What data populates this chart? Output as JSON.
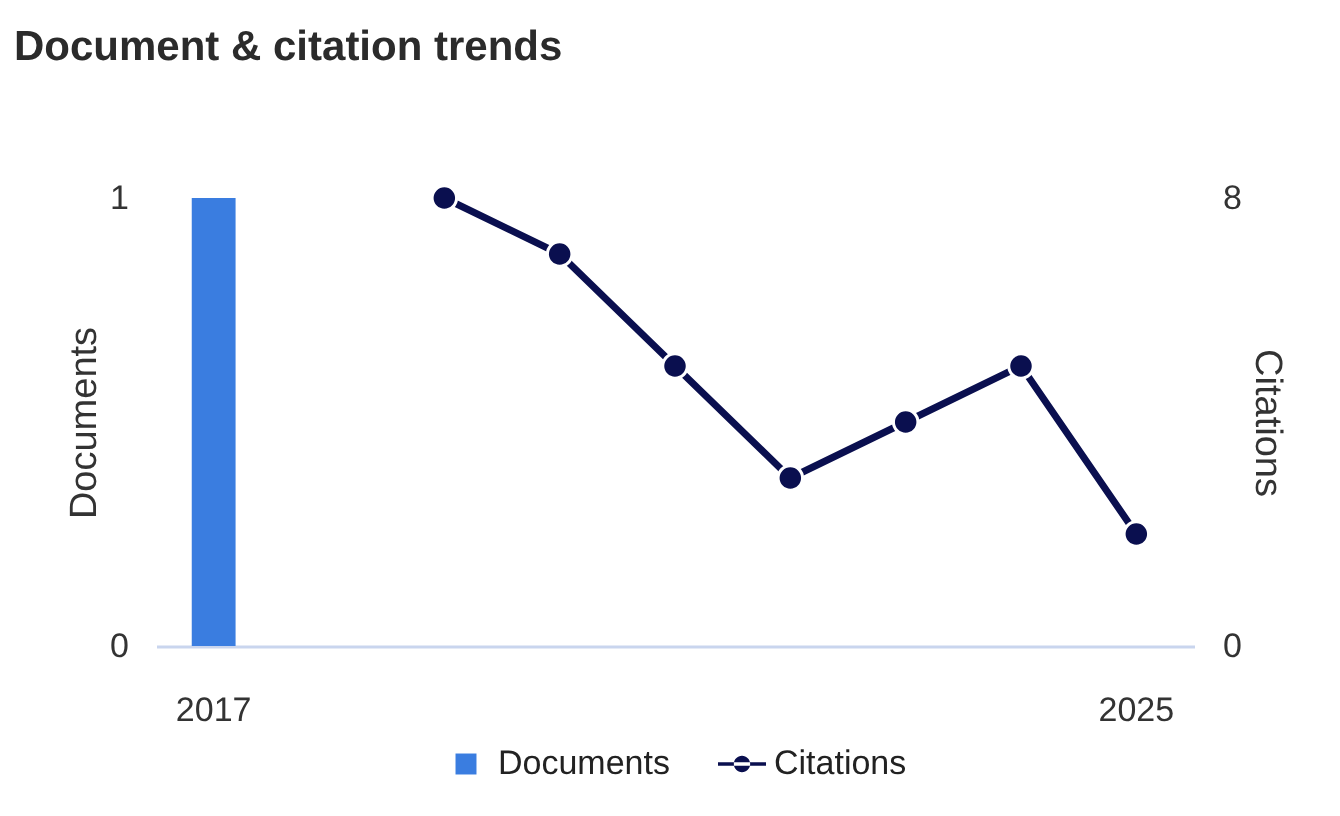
{
  "chart_data": {
    "type": "bar",
    "title": "Document & citation trends",
    "categories": [
      "2017",
      null,
      null,
      null,
      null,
      null,
      null,
      null,
      "2025"
    ],
    "ylabel": "Documents",
    "y2label": "Citations",
    "ylim": [
      0,
      1
    ],
    "yticks": [
      0,
      1
    ],
    "y2lim": [
      0,
      8
    ],
    "y2ticks": [
      0,
      8
    ],
    "series": [
      {
        "name": "Documents",
        "color": "#3a7de0",
        "values": [
          1,
          null,
          null,
          null,
          null,
          null,
          null,
          null,
          null
        ]
      },
      {
        "name": "Citations",
        "type": "line",
        "axis": "y2",
        "color": "#0a0f4f",
        "values": [
          null,
          null,
          8,
          7,
          5,
          3,
          4,
          5,
          2
        ]
      }
    ],
    "legend": "bottom",
    "marker": "circle"
  }
}
